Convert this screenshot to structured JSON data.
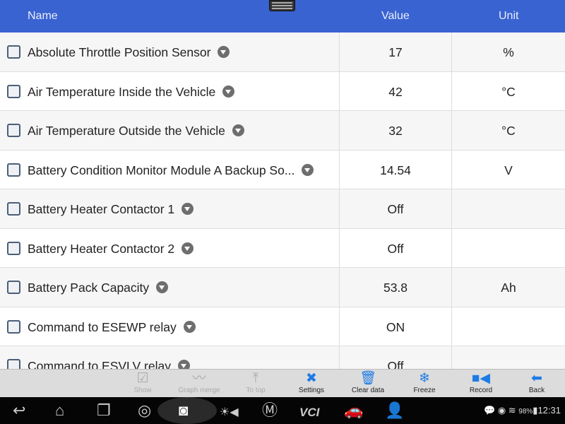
{
  "header": {
    "name": "Name",
    "value": "Value",
    "unit": "Unit"
  },
  "rows": [
    {
      "name": "Absolute Throttle Position Sensor",
      "value": "17",
      "unit": "%"
    },
    {
      "name": "Air Temperature Inside the Vehicle",
      "value": "42",
      "unit": "°C"
    },
    {
      "name": "Air Temperature Outside the Vehicle",
      "value": "32",
      "unit": "°C"
    },
    {
      "name": "Battery Condition Monitor Module A Backup So...",
      "value": "14.54",
      "unit": "V"
    },
    {
      "name": "Battery Heater Contactor 1",
      "value": "Off",
      "unit": ""
    },
    {
      "name": "Battery Heater Contactor 2",
      "value": "Off",
      "unit": ""
    },
    {
      "name": "Battery Pack Capacity",
      "value": "53.8",
      "unit": "Ah"
    },
    {
      "name": "Command to ESEWP relay",
      "value": "ON",
      "unit": ""
    },
    {
      "name": "Command to ESVLV relay",
      "value": "Off",
      "unit": ""
    }
  ],
  "toolbar": {
    "show": "Show",
    "graph_merge": "Graph merge",
    "to_top": "To top",
    "settings": "Settings",
    "clear_data": "Clear data",
    "freeze": "Freeze",
    "record": "Record",
    "back": "Back"
  },
  "status": {
    "battery": "98%",
    "time": "12:31",
    "vci": "VCI"
  },
  "colors": {
    "header": "#3a63d2",
    "accent": "#1e7be6"
  }
}
